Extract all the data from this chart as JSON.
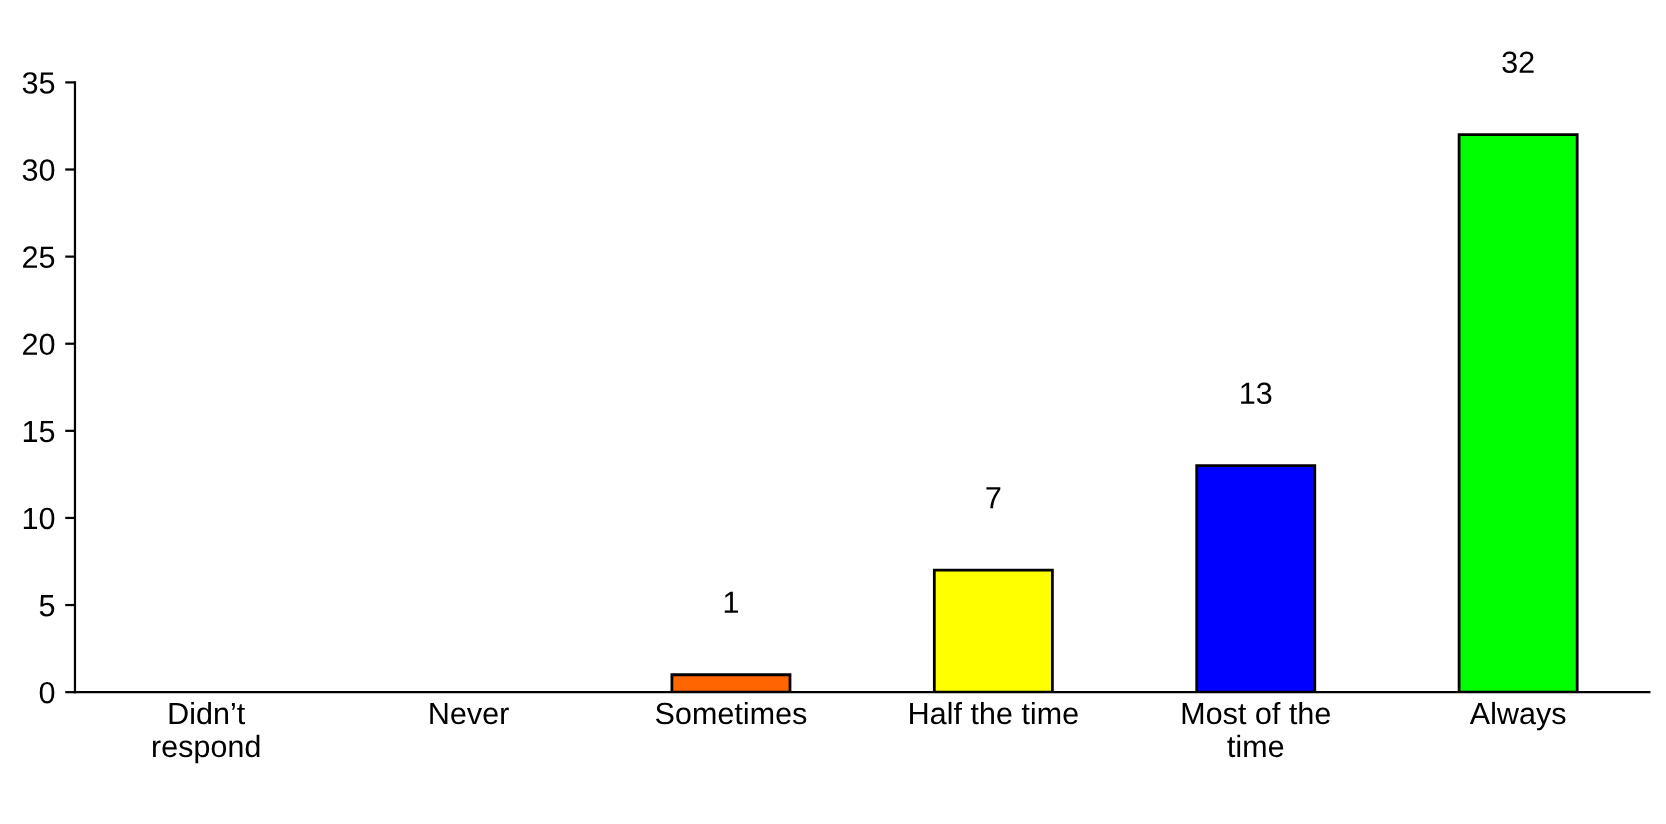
{
  "chart_data": {
    "type": "bar",
    "categories": [
      "Didn’t respond",
      "Never",
      "Sometimes",
      "Half the time",
      "Most of the time",
      "Always"
    ],
    "values": [
      0,
      0,
      1,
      7,
      13,
      32
    ],
    "colors": [
      "#ff6600",
      "#ff6600",
      "#ff6600",
      "#ffff00",
      "#0000ff",
      "#00ff00"
    ],
    "value_labels": [
      null,
      null,
      "1",
      "7",
      "13",
      "32"
    ],
    "ylim": [
      0,
      35
    ],
    "yticks": [
      0,
      5,
      10,
      15,
      20,
      25,
      30,
      35
    ],
    "grid": false,
    "legend": false
  }
}
